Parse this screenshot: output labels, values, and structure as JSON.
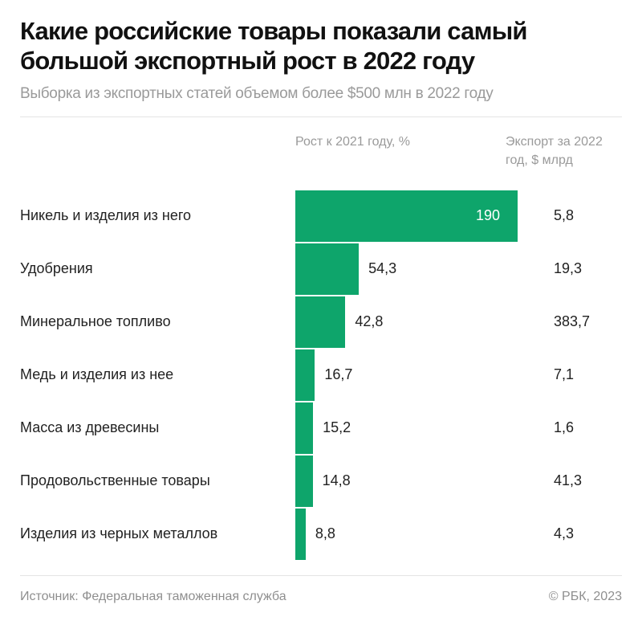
{
  "chart_data": {
    "type": "bar",
    "orientation": "horizontal",
    "title": "Какие российские товары показали самый большой экспортный рост в 2022 году",
    "subtitle": "Выборка из экспортных статей объемом более $500 млн в 2022 году",
    "column_headers": {
      "growth": "Рост к 2021 году, %",
      "export": "Экспорт за 2022 год, $ млрд"
    },
    "categories": [
      "Никель и изделия из него",
      "Удобрения",
      "Минеральное топливо",
      "Медь и изделия из нее",
      "Масса из древесины",
      "Продовольственные товары",
      "Изделия из черных металлов"
    ],
    "values": [
      190,
      54.3,
      42.8,
      16.7,
      15.2,
      14.8,
      8.8
    ],
    "value_labels": [
      "190",
      "54,3",
      "42,8",
      "16,7",
      "15,2",
      "14,8",
      "8,8"
    ],
    "export_values": [
      5.8,
      19.3,
      383.7,
      7.1,
      1.6,
      41.3,
      4.3
    ],
    "export_labels": [
      "5,8",
      "19,3",
      "383,7",
      "7,1",
      "1,6",
      "41,3",
      "4,3"
    ],
    "xlim": [
      0,
      190
    ],
    "grid": false,
    "bar_color": "#0ea56b",
    "source": "Источник: Федеральная таможенная служба",
    "credit": "© РБК, 2023"
  }
}
